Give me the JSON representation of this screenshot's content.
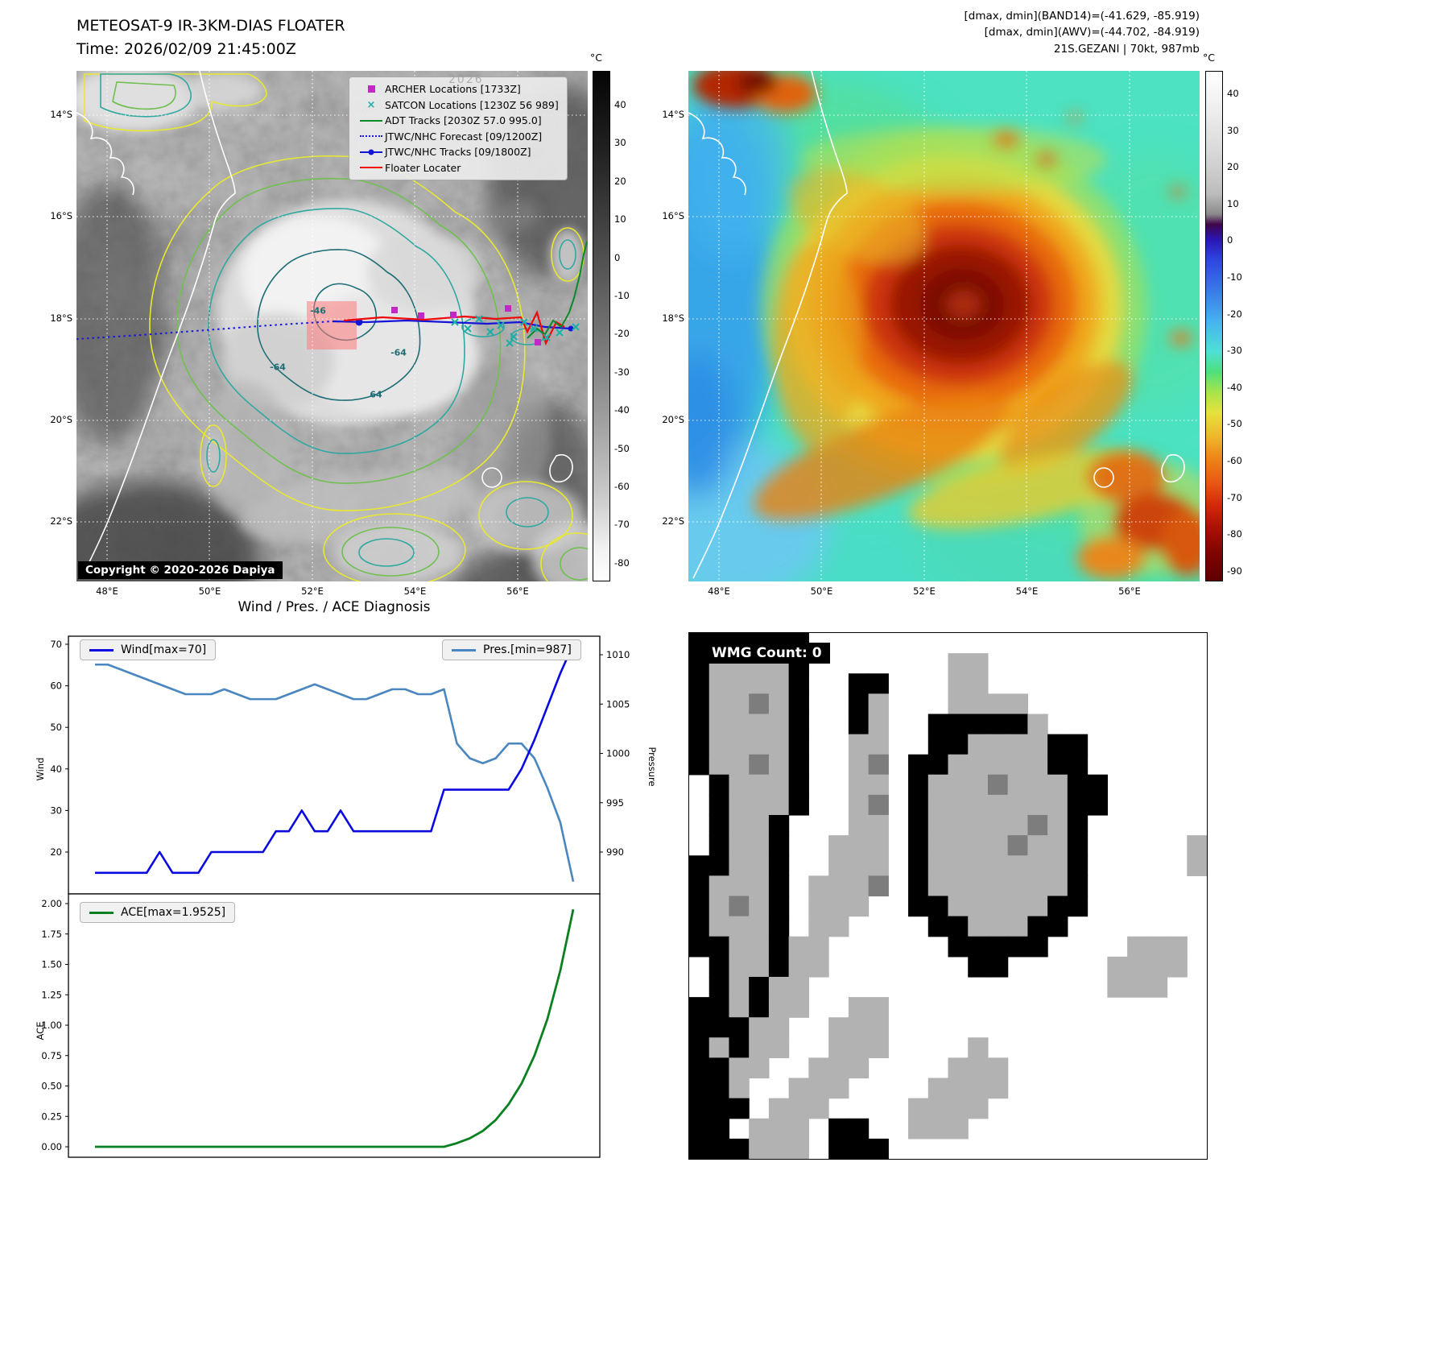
{
  "left_panel": {
    "title": "METEOSAT-9 IR-3KM-DIAS FLOATER",
    "subtitle": "Time: 2026/02/09 21:45:00Z",
    "copyright": "Copyright © 2020-2026 Dapiya",
    "watermark": "2026",
    "colorbar": {
      "unit": "°C",
      "ticks": [
        40,
        30,
        20,
        10,
        0,
        -10,
        -20,
        -30,
        -40,
        -50,
        -60,
        -70,
        -80
      ]
    },
    "x_ticks": [
      "48°E",
      "50°E",
      "52°E",
      "54°E",
      "56°E"
    ],
    "y_ticks": [
      "14°S",
      "16°S",
      "18°S",
      "20°S",
      "22°S"
    ],
    "contour_labels": [
      "-64",
      "-46",
      "-64",
      "64"
    ],
    "legend": [
      {
        "label": "ARCHER Locations [1733Z]",
        "marker": "square",
        "color": "#c428c4"
      },
      {
        "label": "SATCON Locations [1230Z 56 989]",
        "marker": "x",
        "color": "#18b0a8"
      },
      {
        "label": "ADT Tracks [2030Z 57.0 995.0]",
        "marker": "line",
        "color": "#0b8a28"
      },
      {
        "label": "JTWC/NHC Forecast [09/1200Z]",
        "marker": "dotted",
        "color": "#1515e8"
      },
      {
        "label": "JTWC/NHC Tracks [09/1800Z]",
        "marker": "line-dot",
        "color": "#1515d8"
      },
      {
        "label": "Floater Locater",
        "marker": "line",
        "color": "#f00808"
      }
    ]
  },
  "right_panel": {
    "info_lines": [
      "[dmax, dmin](BAND14)=(-41.629, -85.919)",
      "[dmax, dmin](AWV)=(-44.702, -84.919)",
      "21S.GEZANI | 70kt, 987mb"
    ],
    "colorbar": {
      "unit": "°C",
      "ticks": [
        40,
        30,
        20,
        10,
        0,
        -10,
        -20,
        -30,
        -40,
        -50,
        -60,
        -70,
        -80,
        -90
      ]
    },
    "x_ticks": [
      "48°E",
      "50°E",
      "52°E",
      "54°E",
      "56°E"
    ],
    "y_ticks": [
      "14°S",
      "16°S",
      "18°S",
      "20°S",
      "22°S"
    ]
  },
  "diagnosis": {
    "title": "Wind / Pres. / ACE Diagnosis",
    "wind_legend": "Wind[max=70]",
    "pres_legend": "Pres.[min=987]",
    "ace_legend": "ACE[max=1.9525]",
    "wind_axis_label": "Wind",
    "pressure_axis_label": "Pressure",
    "ace_axis_label": "ACE"
  },
  "chart_data": [
    {
      "type": "line",
      "title": "Wind / Pres. / ACE Diagnosis (top panel: wind & pressure)",
      "x_label": "",
      "legend_position": "top",
      "grid": false,
      "left_axis": {
        "label": "Wind",
        "ticks": [
          70,
          60,
          50,
          40,
          30,
          20
        ],
        "lim": [
          10,
          72
        ]
      },
      "right_axis": {
        "label": "Pressure",
        "ticks": [
          1010,
          1005,
          1000,
          995,
          990
        ],
        "lim": [
          986,
          1012
        ]
      },
      "series": [
        {
          "name": "Wind[max=70]",
          "color": "#0a0ae0",
          "axis": "left",
          "values": [
            15,
            15,
            15,
            15,
            15,
            20,
            15,
            15,
            15,
            20,
            20,
            20,
            20,
            20,
            25,
            25,
            30,
            25,
            25,
            30,
            25,
            25,
            25,
            25,
            25,
            25,
            25,
            35,
            35,
            35,
            35,
            35,
            35,
            40,
            47,
            55,
            63,
            70
          ]
        },
        {
          "name": "Pres.[min=987]",
          "color": "#4a86c0",
          "axis": "right",
          "values": [
            1009,
            1009,
            1008.5,
            1008,
            1007.5,
            1007,
            1006.5,
            1006,
            1006,
            1006,
            1006.5,
            1006,
            1005.5,
            1005.5,
            1005.5,
            1006,
            1006.5,
            1007,
            1006.5,
            1006,
            1005.5,
            1005.5,
            1006,
            1006.5,
            1006.5,
            1006,
            1006,
            1006.5,
            1001,
            999.5,
            999,
            999.5,
            1001,
            1001,
            999.5,
            996.5,
            993,
            987
          ]
        }
      ]
    },
    {
      "type": "line",
      "title": "ACE (bottom panel)",
      "x_label": "",
      "grid": false,
      "left_axis": {
        "label": "ACE",
        "ticks": [
          2.0,
          1.75,
          1.5,
          1.25,
          1.0,
          0.75,
          0.5,
          0.25,
          0.0
        ],
        "lim": [
          0,
          2.0
        ]
      },
      "series": [
        {
          "name": "ACE[max=1.9525]",
          "color": "#0a8020",
          "axis": "left",
          "values": [
            0,
            0,
            0,
            0,
            0,
            0,
            0,
            0,
            0,
            0,
            0,
            0,
            0,
            0,
            0,
            0,
            0,
            0,
            0,
            0,
            0,
            0,
            0,
            0,
            0,
            0,
            0,
            0,
            0.03,
            0.07,
            0.13,
            0.22,
            0.35,
            0.52,
            0.75,
            1.05,
            1.45,
            1.9525
          ]
        }
      ]
    }
  ],
  "wmg": {
    "label": "WMG Count: 0",
    "colors": {
      "b": "#000000",
      "l": "#b2b2b2",
      "d": "#7d7d7d"
    },
    "grid": [
      "bbbbbb....................",
      "bllllb.......ll...........",
      "bllllb..bb...ll...........",
      "blldlb..bl...llll.........",
      "bllllb..bl..bbbbbl........",
      "bllllb..ll..bbllllbb......",
      "blldlb..ld.bblllllbb......",
      ".blllb..ll.bllldlllbb.....",
      ".blllb..ld.blllllllbb.....",
      ".bllb...ll.bllllldlb......",
      ".bllb..lll.blllldllb.....l",
      "bbllb..lll.blllllllb.....l",
      "blllb.llld.blllllllb......",
      "bldlb.lll..bblllllbb......",
      "blllb.ll....bblllbb.......",
      "bbllbll......bbbbb....lll.",
      ".bllbll.......bb.....llll.",
      ".blbll...............lll..",
      "bblbll..ll................",
      "bbbll..lll................",
      "blbll..lll....l...........",
      "bbll..lll....lll..........",
      "bbl..lll....llll..........",
      "bbb.lll....llll...........",
      "bb.lll.bb..lll............",
      "bbblll.bbb................"
    ]
  }
}
